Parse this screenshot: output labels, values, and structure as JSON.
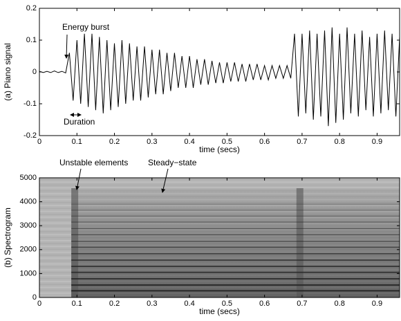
{
  "chart_data": [
    {
      "type": "line",
      "xlabel": "time (secs)",
      "ylabel": "(a) Piano signal",
      "xlim": [
        0,
        0.96
      ],
      "ylim": [
        -0.2,
        0.2
      ],
      "xticks": [
        0,
        0.1,
        0.2,
        0.3,
        0.4,
        0.5,
        0.6,
        0.7,
        0.8,
        0.9
      ],
      "yticks": [
        -0.2,
        -0.1,
        0,
        0.1,
        0.2
      ],
      "annotations": [
        "Energy burst",
        "Duration"
      ],
      "color": "#000000",
      "x": [
        0,
        0.01,
        0.02,
        0.03,
        0.04,
        0.05,
        0.06,
        0.07,
        0.08,
        0.09,
        0.1,
        0.11,
        0.12,
        0.13,
        0.14,
        0.15,
        0.16,
        0.17,
        0.18,
        0.19,
        0.2,
        0.21,
        0.22,
        0.23,
        0.24,
        0.25,
        0.26,
        0.27,
        0.28,
        0.29,
        0.3,
        0.31,
        0.32,
        0.33,
        0.34,
        0.35,
        0.36,
        0.37,
        0.38,
        0.39,
        0.4,
        0.41,
        0.42,
        0.43,
        0.44,
        0.45,
        0.46,
        0.47,
        0.48,
        0.49,
        0.5,
        0.51,
        0.52,
        0.53,
        0.54,
        0.55,
        0.56,
        0.57,
        0.58,
        0.59,
        0.6,
        0.61,
        0.62,
        0.63,
        0.64,
        0.65,
        0.66,
        0.67,
        0.68,
        0.69,
        0.7,
        0.71,
        0.72,
        0.73,
        0.74,
        0.75,
        0.76,
        0.77,
        0.78,
        0.79,
        0.8,
        0.81,
        0.82,
        0.83,
        0.84,
        0.85,
        0.86,
        0.87,
        0.88,
        0.89,
        0.9,
        0.91,
        0.92,
        0.93,
        0.94,
        0.95,
        0.96
      ],
      "values": [
        0.002,
        -0.002,
        0.002,
        -0.002,
        0.003,
        -0.002,
        0.002,
        -0.003,
        0.06,
        -0.09,
        0.1,
        -0.1,
        0.12,
        -0.11,
        0.12,
        -0.12,
        0.11,
        -0.13,
        0.1,
        -0.12,
        0.09,
        -0.11,
        0.1,
        -0.1,
        0.09,
        -0.09,
        0.08,
        -0.09,
        0.08,
        -0.08,
        0.07,
        -0.07,
        0.07,
        -0.07,
        0.06,
        -0.06,
        0.06,
        -0.05,
        0.05,
        -0.05,
        0.05,
        -0.05,
        0.04,
        -0.04,
        0.04,
        -0.04,
        0.035,
        -0.035,
        0.03,
        -0.035,
        0.03,
        -0.03,
        0.03,
        -0.03,
        0.025,
        -0.03,
        0.025,
        -0.025,
        0.025,
        -0.025,
        0.02,
        -0.025,
        0.02,
        -0.02,
        0.02,
        -0.02,
        0.02,
        -0.02,
        0.12,
        -0.14,
        0.12,
        -0.13,
        0.13,
        -0.15,
        0.12,
        -0.14,
        0.13,
        -0.17,
        0.14,
        -0.16,
        0.12,
        -0.15,
        0.14,
        -0.13,
        0.12,
        -0.14,
        0.13,
        -0.12,
        0.11,
        -0.14,
        0.12,
        -0.13,
        0.13,
        -0.12,
        0.12,
        -0.14,
        0.11
      ]
    },
    {
      "type": "spectrogram",
      "xlabel": "time (secs)",
      "ylabel": "(b) Spectrogram",
      "xlim": [
        0,
        0.96
      ],
      "ylim": [
        0,
        5000
      ],
      "xticks": [
        0,
        0.1,
        0.2,
        0.3,
        0.4,
        0.5,
        0.6,
        0.7,
        0.8,
        0.9
      ],
      "yticks": [
        0,
        1000,
        2000,
        3000,
        4000,
        5000
      ],
      "annotations": [
        "Unstable elements",
        "Steady−state"
      ],
      "onsets": [
        0.085,
        0.685
      ],
      "harmonics": [
        280,
        520,
        780,
        1050,
        1300,
        1560,
        1830,
        2100,
        2350,
        2620,
        2880,
        3150,
        3400,
        3650,
        3900
      ]
    }
  ]
}
